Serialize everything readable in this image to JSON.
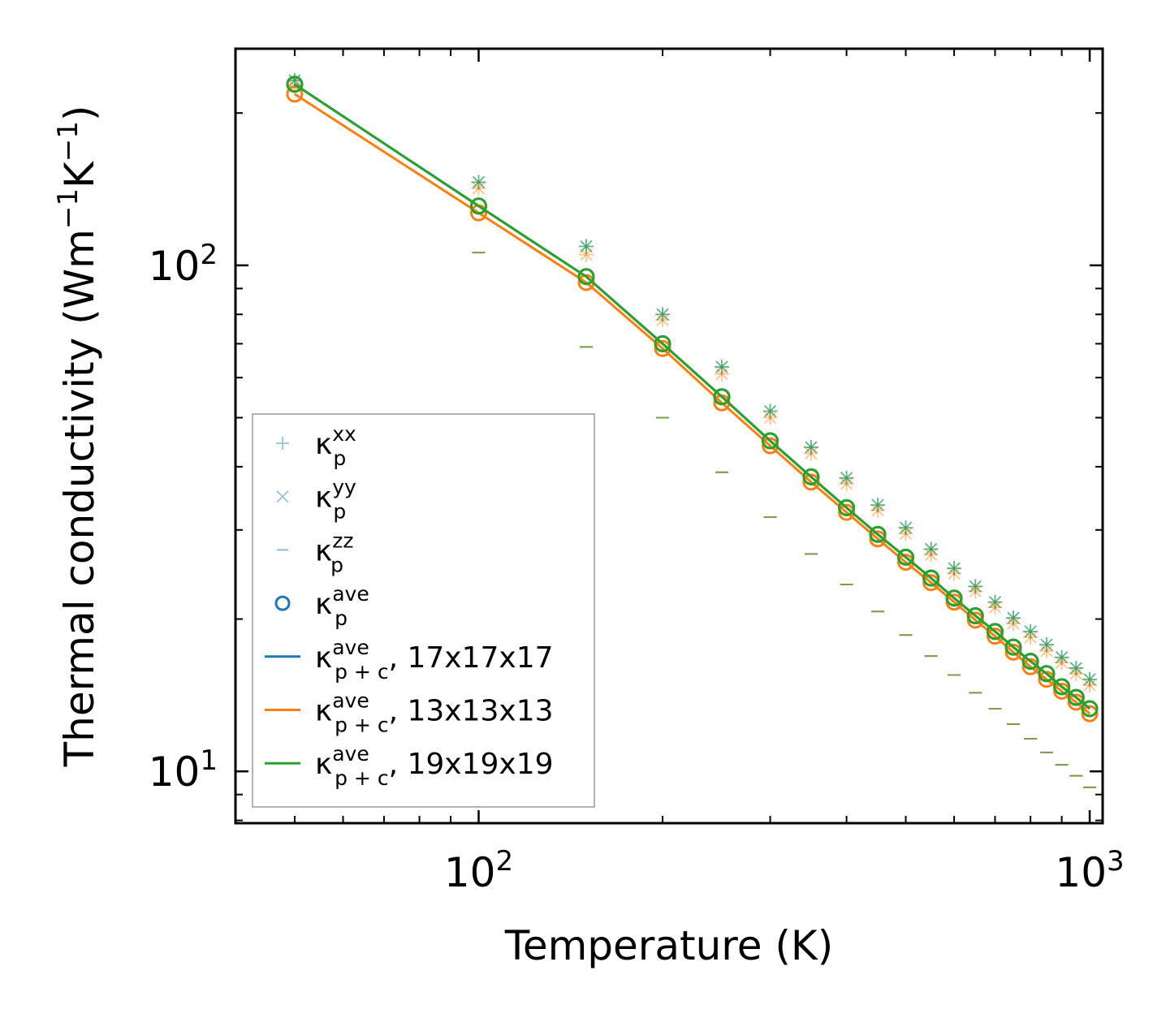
{
  "chart_data": {
    "type": "scatter",
    "xscale": "log",
    "yscale": "log",
    "xlabel": "Temperature (K)",
    "ylabel_main": "Thermal conductivity (Wm",
    "ylabel_sup1": "−1",
    "ylabel_mid": "K",
    "ylabel_sup2": "−1",
    "ylabel_end": ")",
    "xlim": [
      40,
      1050
    ],
    "ylim": [
      7.9,
      268
    ],
    "x_ticks": [
      {
        "value": 100,
        "base": "10",
        "exp": "2"
      },
      {
        "value": 1000,
        "base": "10",
        "exp": "3"
      }
    ],
    "y_ticks": [
      {
        "value": 10,
        "base": "10",
        "exp": "1"
      },
      {
        "value": 100,
        "base": "10",
        "exp": "2"
      }
    ],
    "grid": false,
    "legend_position": "lower-left",
    "x": [
      50,
      100,
      150,
      200,
      250,
      300,
      350,
      400,
      450,
      500,
      550,
      600,
      650,
      700,
      750,
      800,
      850,
      900,
      950,
      1000
    ],
    "series": [
      {
        "name": "17x17x17",
        "color": "#1f77b4",
        "ave": [
          228,
          131,
          95,
          70,
          55,
          45,
          38.2,
          33.2,
          29.4,
          26.5,
          24.1,
          22.0,
          20.3,
          18.9,
          17.6,
          16.5,
          15.6,
          14.7,
          14.0,
          13.3
        ],
        "xx": [
          232,
          146,
          109,
          80,
          63,
          51.5,
          43.7,
          38.0,
          33.6,
          30.3,
          27.5,
          25.2,
          23.2,
          21.6,
          20.1,
          18.9,
          17.8,
          16.8,
          16.0,
          15.2
        ],
        "yy": [
          232,
          146,
          109,
          80,
          63,
          51.5,
          43.7,
          38.0,
          33.6,
          30.3,
          27.5,
          25.2,
          23.2,
          21.6,
          20.1,
          18.9,
          17.8,
          16.8,
          16.0,
          15.2
        ],
        "zz": [
          null,
          106,
          69,
          50,
          39,
          31.8,
          26.9,
          23.4,
          20.7,
          18.6,
          16.9,
          15.5,
          14.3,
          13.3,
          12.4,
          11.6,
          10.9,
          10.3,
          9.8,
          9.3
        ]
      },
      {
        "name": "13x13x13",
        "color": "#ff7f0e",
        "ave": [
          218,
          127,
          92.5,
          68.5,
          53.5,
          44,
          37.3,
          32.5,
          28.8,
          25.9,
          23.6,
          21.6,
          19.9,
          18.5,
          17.2,
          16.1,
          15.2,
          14.4,
          13.7,
          13.0
        ],
        "xx": [
          226,
          142,
          105,
          78,
          61,
          50.0,
          42.5,
          37.0,
          32.8,
          29.5,
          26.8,
          24.6,
          22.7,
          21.1,
          19.6,
          18.4,
          17.3,
          16.4,
          15.6,
          14.8
        ],
        "yy": [
          226,
          142,
          105,
          78,
          61,
          50.0,
          42.5,
          37.0,
          32.8,
          29.5,
          26.8,
          24.6,
          22.7,
          21.1,
          19.6,
          18.4,
          17.3,
          16.4,
          15.6,
          14.8
        ],
        "zz": [
          null,
          106,
          69,
          50,
          39,
          31.8,
          26.9,
          23.4,
          20.7,
          18.6,
          16.9,
          15.5,
          14.3,
          13.3,
          12.4,
          11.6,
          10.9,
          10.3,
          9.8,
          9.3
        ]
      },
      {
        "name": "19x19x19",
        "color": "#2ca02c",
        "ave": [
          228,
          131,
          95,
          70,
          55,
          45,
          38.2,
          33.2,
          29.4,
          26.5,
          24.1,
          22.0,
          20.3,
          18.9,
          17.6,
          16.5,
          15.6,
          14.7,
          14.0,
          13.3
        ],
        "xx": [
          232,
          146,
          109,
          80,
          63,
          51.5,
          43.7,
          38.0,
          33.6,
          30.3,
          27.5,
          25.2,
          23.2,
          21.6,
          20.1,
          18.9,
          17.8,
          16.8,
          16.0,
          15.2
        ],
        "yy": [
          232,
          146,
          109,
          80,
          63,
          51.5,
          43.7,
          38.0,
          33.6,
          30.3,
          27.5,
          25.2,
          23.2,
          21.6,
          20.1,
          18.9,
          17.8,
          16.8,
          16.0,
          15.2
        ],
        "zz": [
          null,
          106,
          69,
          50,
          39,
          31.8,
          26.9,
          23.4,
          20.7,
          18.6,
          16.9,
          15.5,
          14.3,
          13.3,
          12.4,
          11.6,
          10.9,
          10.3,
          9.8,
          9.3
        ]
      }
    ],
    "legend": [
      {
        "kind": "plus",
        "color": "#1f77b4",
        "base": "κ",
        "sup": "xx",
        "sub": "p",
        "suffix": ""
      },
      {
        "kind": "cross",
        "color": "#1f77b4",
        "base": "κ",
        "sup": "yy",
        "sub": "p",
        "suffix": ""
      },
      {
        "kind": "dash",
        "color": "#1f77b4",
        "base": "κ",
        "sup": "zz",
        "sub": "p",
        "suffix": ""
      },
      {
        "kind": "circle",
        "color": "#1f77b4",
        "base": "κ",
        "sup": "ave",
        "sub": "p",
        "suffix": ""
      },
      {
        "kind": "line",
        "color": "#1f77b4",
        "base": "κ",
        "sup": "ave",
        "sub": "p + c",
        "suffix": ", 17x17x17"
      },
      {
        "kind": "line",
        "color": "#ff7f0e",
        "base": "κ",
        "sup": "ave",
        "sub": "p + c",
        "suffix": ", 13x13x13"
      },
      {
        "kind": "line",
        "color": "#2ca02c",
        "base": "κ",
        "sup": "ave",
        "sub": "p + c",
        "suffix": ", 19x19x19"
      }
    ]
  }
}
